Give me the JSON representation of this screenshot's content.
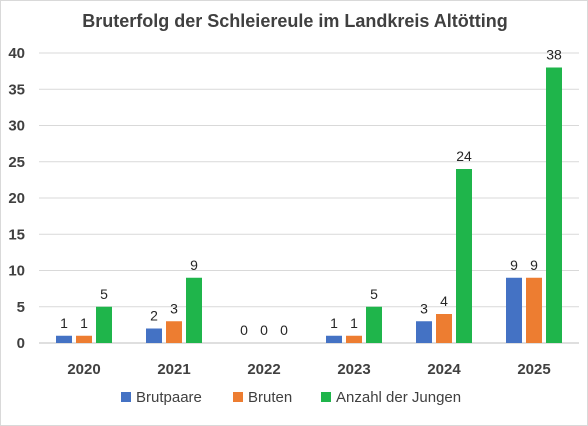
{
  "chart_data": {
    "type": "bar",
    "title": "Bruterfolg der Schleiereule im Landkreis Altötting",
    "categories": [
      "2020",
      "2021",
      "2022",
      "2023",
      "2024",
      "2025"
    ],
    "series": [
      {
        "name": "Brutpaare",
        "values": [
          1,
          2,
          0,
          1,
          3,
          9
        ],
        "color": "#4472c4"
      },
      {
        "name": "Bruten",
        "values": [
          1,
          3,
          0,
          1,
          4,
          9
        ],
        "color": "#ed7d31"
      },
      {
        "name": "Anzahl der Jungen",
        "values": [
          5,
          9,
          0,
          5,
          24,
          38
        ],
        "color": "#1fb54b"
      }
    ],
    "ylim": [
      0,
      40
    ],
    "yticks": [
      0,
      5,
      10,
      15,
      20,
      25,
      30,
      35,
      40
    ],
    "grid": true,
    "legend": "bottom",
    "data_labels": true
  }
}
